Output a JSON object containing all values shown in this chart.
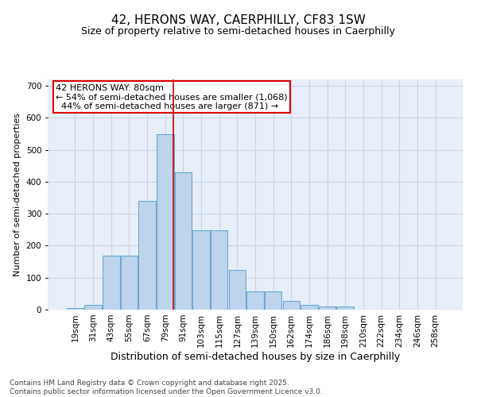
{
  "title1": "42, HERONS WAY, CAERPHILLY, CF83 1SW",
  "title2": "Size of property relative to semi-detached houses in Caerphilly",
  "xlabel": "Distribution of semi-detached houses by size in Caerphilly",
  "ylabel": "Number of semi-detached properties",
  "categories": [
    "19sqm",
    "31sqm",
    "43sqm",
    "55sqm",
    "67sqm",
    "79sqm",
    "91sqm",
    "103sqm",
    "115sqm",
    "127sqm",
    "139sqm",
    "150sqm",
    "162sqm",
    "174sqm",
    "186sqm",
    "198sqm",
    "210sqm",
    "222sqm",
    "234sqm",
    "246sqm",
    "258sqm"
  ],
  "values": [
    5,
    15,
    170,
    170,
    340,
    548,
    430,
    248,
    248,
    123,
    58,
    58,
    28,
    15,
    10,
    10,
    0,
    0,
    0,
    0,
    0
  ],
  "bar_color": "#bdd4ea",
  "bar_edge_color": "#6aaad4",
  "vline_color": "#cc0000",
  "vline_x_index": 5,
  "annotation_text": "42 HERONS WAY: 80sqm\n← 54% of semi-detached houses are smaller (1,068)\n  44% of semi-detached houses are larger (871) →",
  "annotation_box_facecolor": "#ffffff",
  "annotation_box_edgecolor": "#dd0000",
  "ylim": [
    0,
    720
  ],
  "yticks": [
    0,
    100,
    200,
    300,
    400,
    500,
    600,
    700
  ],
  "grid_color": "#c8d4e8",
  "background_color": "#e8eef8",
  "footnote": "Contains HM Land Registry data © Crown copyright and database right 2025.\nContains public sector information licensed under the Open Government Licence v3.0.",
  "title1_fontsize": 11,
  "title2_fontsize": 9,
  "xlabel_fontsize": 9,
  "ylabel_fontsize": 8,
  "tick_fontsize": 7.5,
  "annotation_fontsize": 8,
  "footnote_fontsize": 6.5
}
